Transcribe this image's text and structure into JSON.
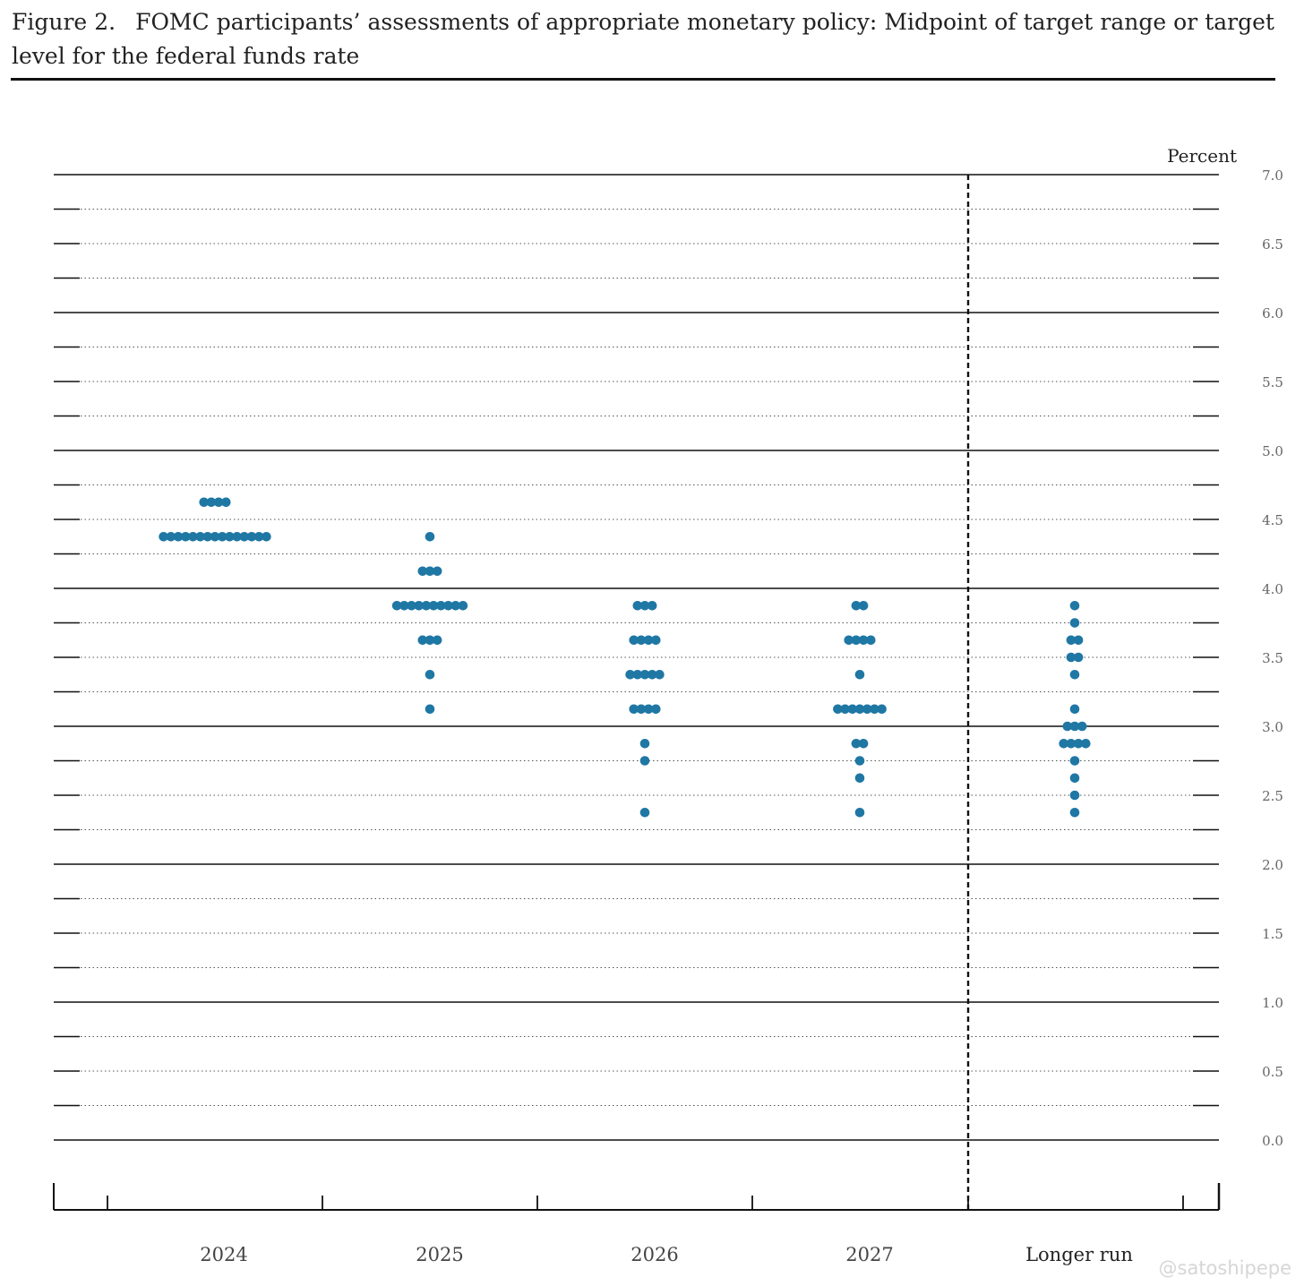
{
  "figure": {
    "label": "Figure 2.",
    "title": "FOMC participants’ assessments of appropriate monetary policy: Midpoint of target range or target level for the federal funds rate"
  },
  "watermark": "@satoshipepe",
  "colors": {
    "dot": "#1f77a4",
    "line": "#111111",
    "tick_text": "#666666"
  },
  "chart_data": {
    "type": "scatter",
    "ylabel": "Percent",
    "ylim": [
      0,
      7
    ],
    "yticks": [
      "0.0",
      "0.5",
      "1.0",
      "1.5",
      "2.0",
      "2.5",
      "3.0",
      "3.5",
      "4.0",
      "4.5",
      "5.0",
      "5.5",
      "6.0",
      "6.5",
      "7.0"
    ],
    "categories": [
      "2024",
      "2025",
      "2026",
      "2027",
      "Longer run"
    ],
    "grid": "dotted minor every 0.25, solid major every 1.0",
    "separator": "dashed vertical line before Longer run",
    "series": [
      {
        "category": "2024",
        "points": [
          {
            "y": 4.625,
            "count": 4
          },
          {
            "y": 4.375,
            "count": 15
          }
        ]
      },
      {
        "category": "2025",
        "points": [
          {
            "y": 4.375,
            "count": 1
          },
          {
            "y": 4.125,
            "count": 3
          },
          {
            "y": 3.875,
            "count": 10
          },
          {
            "y": 3.625,
            "count": 3
          },
          {
            "y": 3.375,
            "count": 1
          },
          {
            "y": 3.125,
            "count": 1
          }
        ]
      },
      {
        "category": "2026",
        "points": [
          {
            "y": 3.875,
            "count": 3
          },
          {
            "y": 3.625,
            "count": 4
          },
          {
            "y": 3.375,
            "count": 5
          },
          {
            "y": 3.125,
            "count": 4
          },
          {
            "y": 2.875,
            "count": 1
          },
          {
            "y": 2.75,
            "count": 1
          },
          {
            "y": 2.375,
            "count": 1
          }
        ]
      },
      {
        "category": "2027",
        "points": [
          {
            "y": 3.875,
            "count": 2
          },
          {
            "y": 3.625,
            "count": 4
          },
          {
            "y": 3.375,
            "count": 1
          },
          {
            "y": 3.125,
            "count": 7
          },
          {
            "y": 2.875,
            "count": 2
          },
          {
            "y": 2.75,
            "count": 1
          },
          {
            "y": 2.625,
            "count": 1
          },
          {
            "y": 2.375,
            "count": 1
          }
        ]
      },
      {
        "category": "Longer run",
        "points": [
          {
            "y": 3.875,
            "count": 1
          },
          {
            "y": 3.75,
            "count": 1
          },
          {
            "y": 3.625,
            "count": 2
          },
          {
            "y": 3.5,
            "count": 2
          },
          {
            "y": 3.375,
            "count": 1
          },
          {
            "y": 3.125,
            "count": 1
          },
          {
            "y": 3.0,
            "count": 3
          },
          {
            "y": 2.875,
            "count": 4
          },
          {
            "y": 2.75,
            "count": 1
          },
          {
            "y": 2.625,
            "count": 1
          },
          {
            "y": 2.5,
            "count": 1
          },
          {
            "y": 2.375,
            "count": 1
          }
        ]
      }
    ]
  }
}
